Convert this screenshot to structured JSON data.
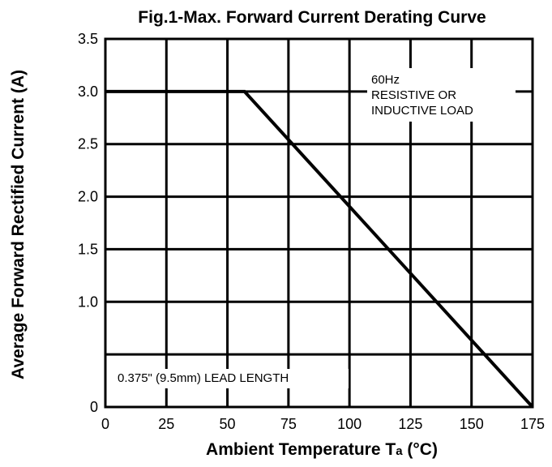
{
  "chart_data": {
    "type": "line",
    "title": "Fig.1-Max. Forward Current Derating Curve",
    "xlabel": {
      "main": "Ambient Temperature T",
      "subscript": "a",
      "unit": " (°C)"
    },
    "ylabel": "Average Forward Rectified Current (A)",
    "xlim": [
      0,
      175
    ],
    "ylim": [
      0,
      3.5
    ],
    "x_ticks": [
      0,
      25,
      50,
      75,
      100,
      125,
      150,
      175
    ],
    "x_tick_labels": [
      "0",
      "25",
      "50",
      "75",
      "100",
      "125",
      "150",
      "175"
    ],
    "y_ticks": [
      0,
      0.5,
      1.0,
      1.5,
      2.0,
      2.5,
      3.0,
      3.5
    ],
    "y_tick_labels": [
      "0",
      "",
      "1.0",
      "1.5",
      "2.0",
      "2.5",
      "3.0",
      "3.5"
    ],
    "grid": true,
    "series": [
      {
        "x": [
          0,
          57,
          175
        ],
        "y": [
          3.0,
          3.0,
          0
        ]
      }
    ],
    "annotations": {
      "load_condition": [
        "60Hz",
        "RESISTIVE OR",
        "INDUCTIVE LOAD"
      ],
      "lead_length": "0.375\" (9.5mm) LEAD LENGTH"
    },
    "colors": {
      "line": "#000000",
      "grid": "#000000",
      "background": "#ffffff"
    }
  }
}
